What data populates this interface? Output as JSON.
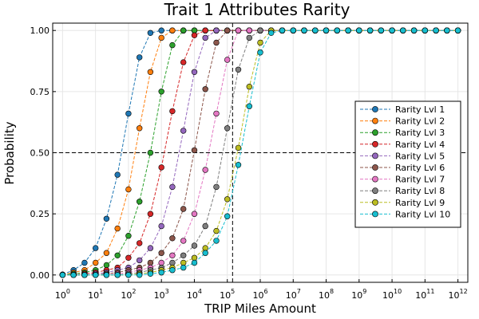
{
  "chart_data": {
    "type": "line",
    "title": "Trait 1 Attributes Rarity",
    "xlabel": "TRIP Miles Amount",
    "ylabel": "Probability",
    "x_scale": "log10",
    "xlim_log10": [
      -0.3,
      12.3
    ],
    "ylim": [
      -0.03,
      1.03
    ],
    "x_tick_base": "10",
    "x_tick_exponents": [
      "0",
      "1",
      "2",
      "3",
      "4",
      "5",
      "6",
      "7",
      "8",
      "9",
      "10",
      "11",
      "12"
    ],
    "y_ticks": [
      0,
      0.25,
      0.5,
      0.75,
      1.0
    ],
    "y_tick_labels": [
      "0.00",
      "0.25",
      "0.50",
      "0.75",
      "1.00"
    ],
    "grid": true,
    "legend_position": "right",
    "x_log10": [
      0,
      0.333,
      0.667,
      1,
      1.333,
      1.667,
      2,
      2.333,
      2.667,
      3,
      3.333,
      3.667,
      4,
      4.333,
      4.667,
      5,
      5.333,
      5.667,
      6,
      6.333,
      6.667,
      7,
      7.333,
      7.667,
      8,
      8.333,
      8.667,
      9,
      9.333,
      9.667,
      10,
      10.333,
      10.667,
      11,
      11.333,
      11.667,
      12
    ],
    "reference_lines": {
      "horizontal_y": 0.5,
      "vertical_x_log10": 5.16
    },
    "series": [
      {
        "name": "Rarity Lvl 1",
        "color": "#1f77b4",
        "values": [
          0.002,
          0.02,
          0.05,
          0.11,
          0.23,
          0.41,
          0.66,
          0.89,
          0.99,
          1,
          1,
          1,
          1,
          1,
          1,
          1,
          1,
          1,
          1,
          1,
          1,
          1,
          1,
          1,
          1,
          1,
          1,
          1,
          1,
          1,
          1,
          1,
          1,
          1,
          1,
          1,
          1
        ]
      },
      {
        "name": "Rarity Lvl 2",
        "color": "#ff7f0e",
        "values": [
          0,
          0.01,
          0.02,
          0.05,
          0.09,
          0.19,
          0.35,
          0.6,
          0.83,
          0.97,
          1,
          1,
          1,
          1,
          1,
          1,
          1,
          1,
          1,
          1,
          1,
          1,
          1,
          1,
          1,
          1,
          1,
          1,
          1,
          1,
          1,
          1,
          1,
          1,
          1,
          1,
          1
        ]
      },
      {
        "name": "Rarity Lvl 3",
        "color": "#2ca02c",
        "values": [
          0,
          0.005,
          0.01,
          0.02,
          0.04,
          0.08,
          0.16,
          0.3,
          0.5,
          0.75,
          0.94,
          1,
          1,
          1,
          1,
          1,
          1,
          1,
          1,
          1,
          1,
          1,
          1,
          1,
          1,
          1,
          1,
          1,
          1,
          1,
          1,
          1,
          1,
          1,
          1,
          1,
          1
        ]
      },
      {
        "name": "Rarity Lvl 4",
        "color": "#d62728",
        "values": [
          0,
          0,
          0.005,
          0.01,
          0.02,
          0.03,
          0.07,
          0.13,
          0.25,
          0.44,
          0.67,
          0.87,
          0.98,
          1,
          1,
          1,
          1,
          1,
          1,
          1,
          1,
          1,
          1,
          1,
          1,
          1,
          1,
          1,
          1,
          1,
          1,
          1,
          1,
          1,
          1,
          1,
          1
        ]
      },
      {
        "name": "Rarity Lvl 5",
        "color": "#9467bd",
        "values": [
          0,
          0,
          0,
          0.005,
          0.01,
          0.02,
          0.03,
          0.06,
          0.11,
          0.2,
          0.36,
          0.59,
          0.83,
          0.97,
          1,
          1,
          1,
          1,
          1,
          1,
          1,
          1,
          1,
          1,
          1,
          1,
          1,
          1,
          1,
          1,
          1,
          1,
          1,
          1,
          1,
          1,
          1
        ]
      },
      {
        "name": "Rarity Lvl 6",
        "color": "#8c564b",
        "values": [
          0,
          0,
          0,
          0,
          0.005,
          0.01,
          0.02,
          0.03,
          0.05,
          0.09,
          0.15,
          0.27,
          0.51,
          0.76,
          0.95,
          1,
          1,
          1,
          1,
          1,
          1,
          1,
          1,
          1,
          1,
          1,
          1,
          1,
          1,
          1,
          1,
          1,
          1,
          1,
          1,
          1,
          1
        ]
      },
      {
        "name": "Rarity Lvl 7",
        "color": "#e377c2",
        "values": [
          0,
          0,
          0,
          0,
          0,
          0.005,
          0.01,
          0.02,
          0.03,
          0.05,
          0.08,
          0.14,
          0.25,
          0.43,
          0.66,
          0.88,
          1,
          1,
          1,
          1,
          1,
          1,
          1,
          1,
          1,
          1,
          1,
          1,
          1,
          1,
          1,
          1,
          1,
          1,
          1,
          1,
          1
        ]
      },
      {
        "name": "Rarity Lvl 8",
        "color": "#7f7f7f",
        "values": [
          0,
          0,
          0,
          0,
          0,
          0,
          0.005,
          0.01,
          0.02,
          0.03,
          0.05,
          0.08,
          0.12,
          0.2,
          0.36,
          0.6,
          0.84,
          0.97,
          1,
          1,
          1,
          1,
          1,
          1,
          1,
          1,
          1,
          1,
          1,
          1,
          1,
          1,
          1,
          1,
          1,
          1,
          1
        ]
      },
      {
        "name": "Rarity Lvl 9",
        "color": "#bcbd22",
        "values": [
          0,
          0,
          0,
          0,
          0,
          0,
          0,
          0.005,
          0.01,
          0.02,
          0.03,
          0.05,
          0.07,
          0.11,
          0.18,
          0.31,
          0.52,
          0.77,
          0.95,
          1,
          1,
          1,
          1,
          1,
          1,
          1,
          1,
          1,
          1,
          1,
          1,
          1,
          1,
          1,
          1,
          1,
          1
        ]
      },
      {
        "name": "Rarity Lvl 10",
        "color": "#17becf",
        "values": [
          0,
          0,
          0,
          0,
          0,
          0,
          0,
          0,
          0.005,
          0.01,
          0.02,
          0.03,
          0.05,
          0.09,
          0.14,
          0.24,
          0.45,
          0.69,
          0.91,
          0.99,
          1,
          1,
          1,
          1,
          1,
          1,
          1,
          1,
          1,
          1,
          1,
          1,
          1,
          1,
          1,
          1,
          1
        ]
      }
    ]
  }
}
